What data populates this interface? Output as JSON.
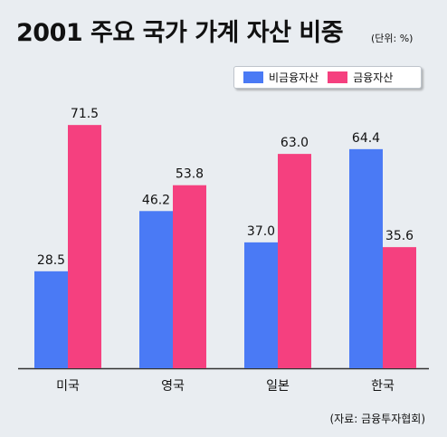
{
  "title": "2001 주요 국가 가계 자산 비중",
  "unit": "(단위: %)",
  "source": "(자료: 금융투자협회)",
  "colors": {
    "non_financial": "#4a7af5",
    "financial": "#f5407f"
  },
  "chart_data": {
    "type": "bar",
    "categories": [
      "미국",
      "영국",
      "일본",
      "한국"
    ],
    "series": [
      {
        "name": "비금융자산",
        "values": [
          28.5,
          46.2,
          37.0,
          64.4
        ]
      },
      {
        "name": "금융자산",
        "values": [
          71.5,
          53.8,
          63.0,
          35.6
        ]
      }
    ],
    "ylim": [
      0,
      80
    ],
    "grid": false,
    "legend_position": "top-right"
  }
}
